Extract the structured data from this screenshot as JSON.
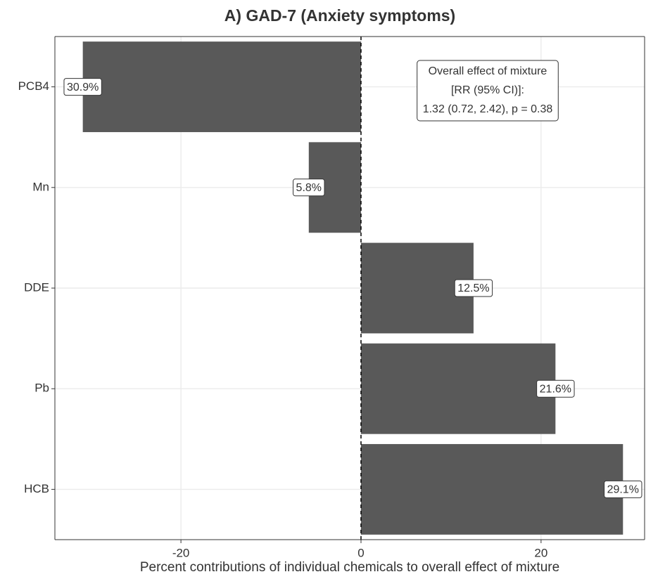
{
  "chart_data": {
    "type": "bar",
    "orientation": "horizontal",
    "title": "A)  GAD-7 (Anxiety symptoms)",
    "x_label": "Percent contributions of individual chemicals to overall effect of mixture",
    "categories": [
      "PCB4",
      "Mn",
      "DDE",
      "Pb",
      "HCB"
    ],
    "values": [
      -30.9,
      -5.8,
      12.5,
      21.6,
      29.1
    ],
    "value_labels": [
      "30.9%",
      "5.8%",
      "12.5%",
      "21.6%",
      "29.1%"
    ],
    "color": "#595959",
    "xlim": [
      -34,
      31.5
    ],
    "xticks": [
      -20,
      0,
      20
    ],
    "grid": true,
    "annotation": [
      "Overall effect of mixture",
      "[RR (95% CI)]:",
      "1.32 (0.72, 2.42), p = 0.38"
    ]
  }
}
